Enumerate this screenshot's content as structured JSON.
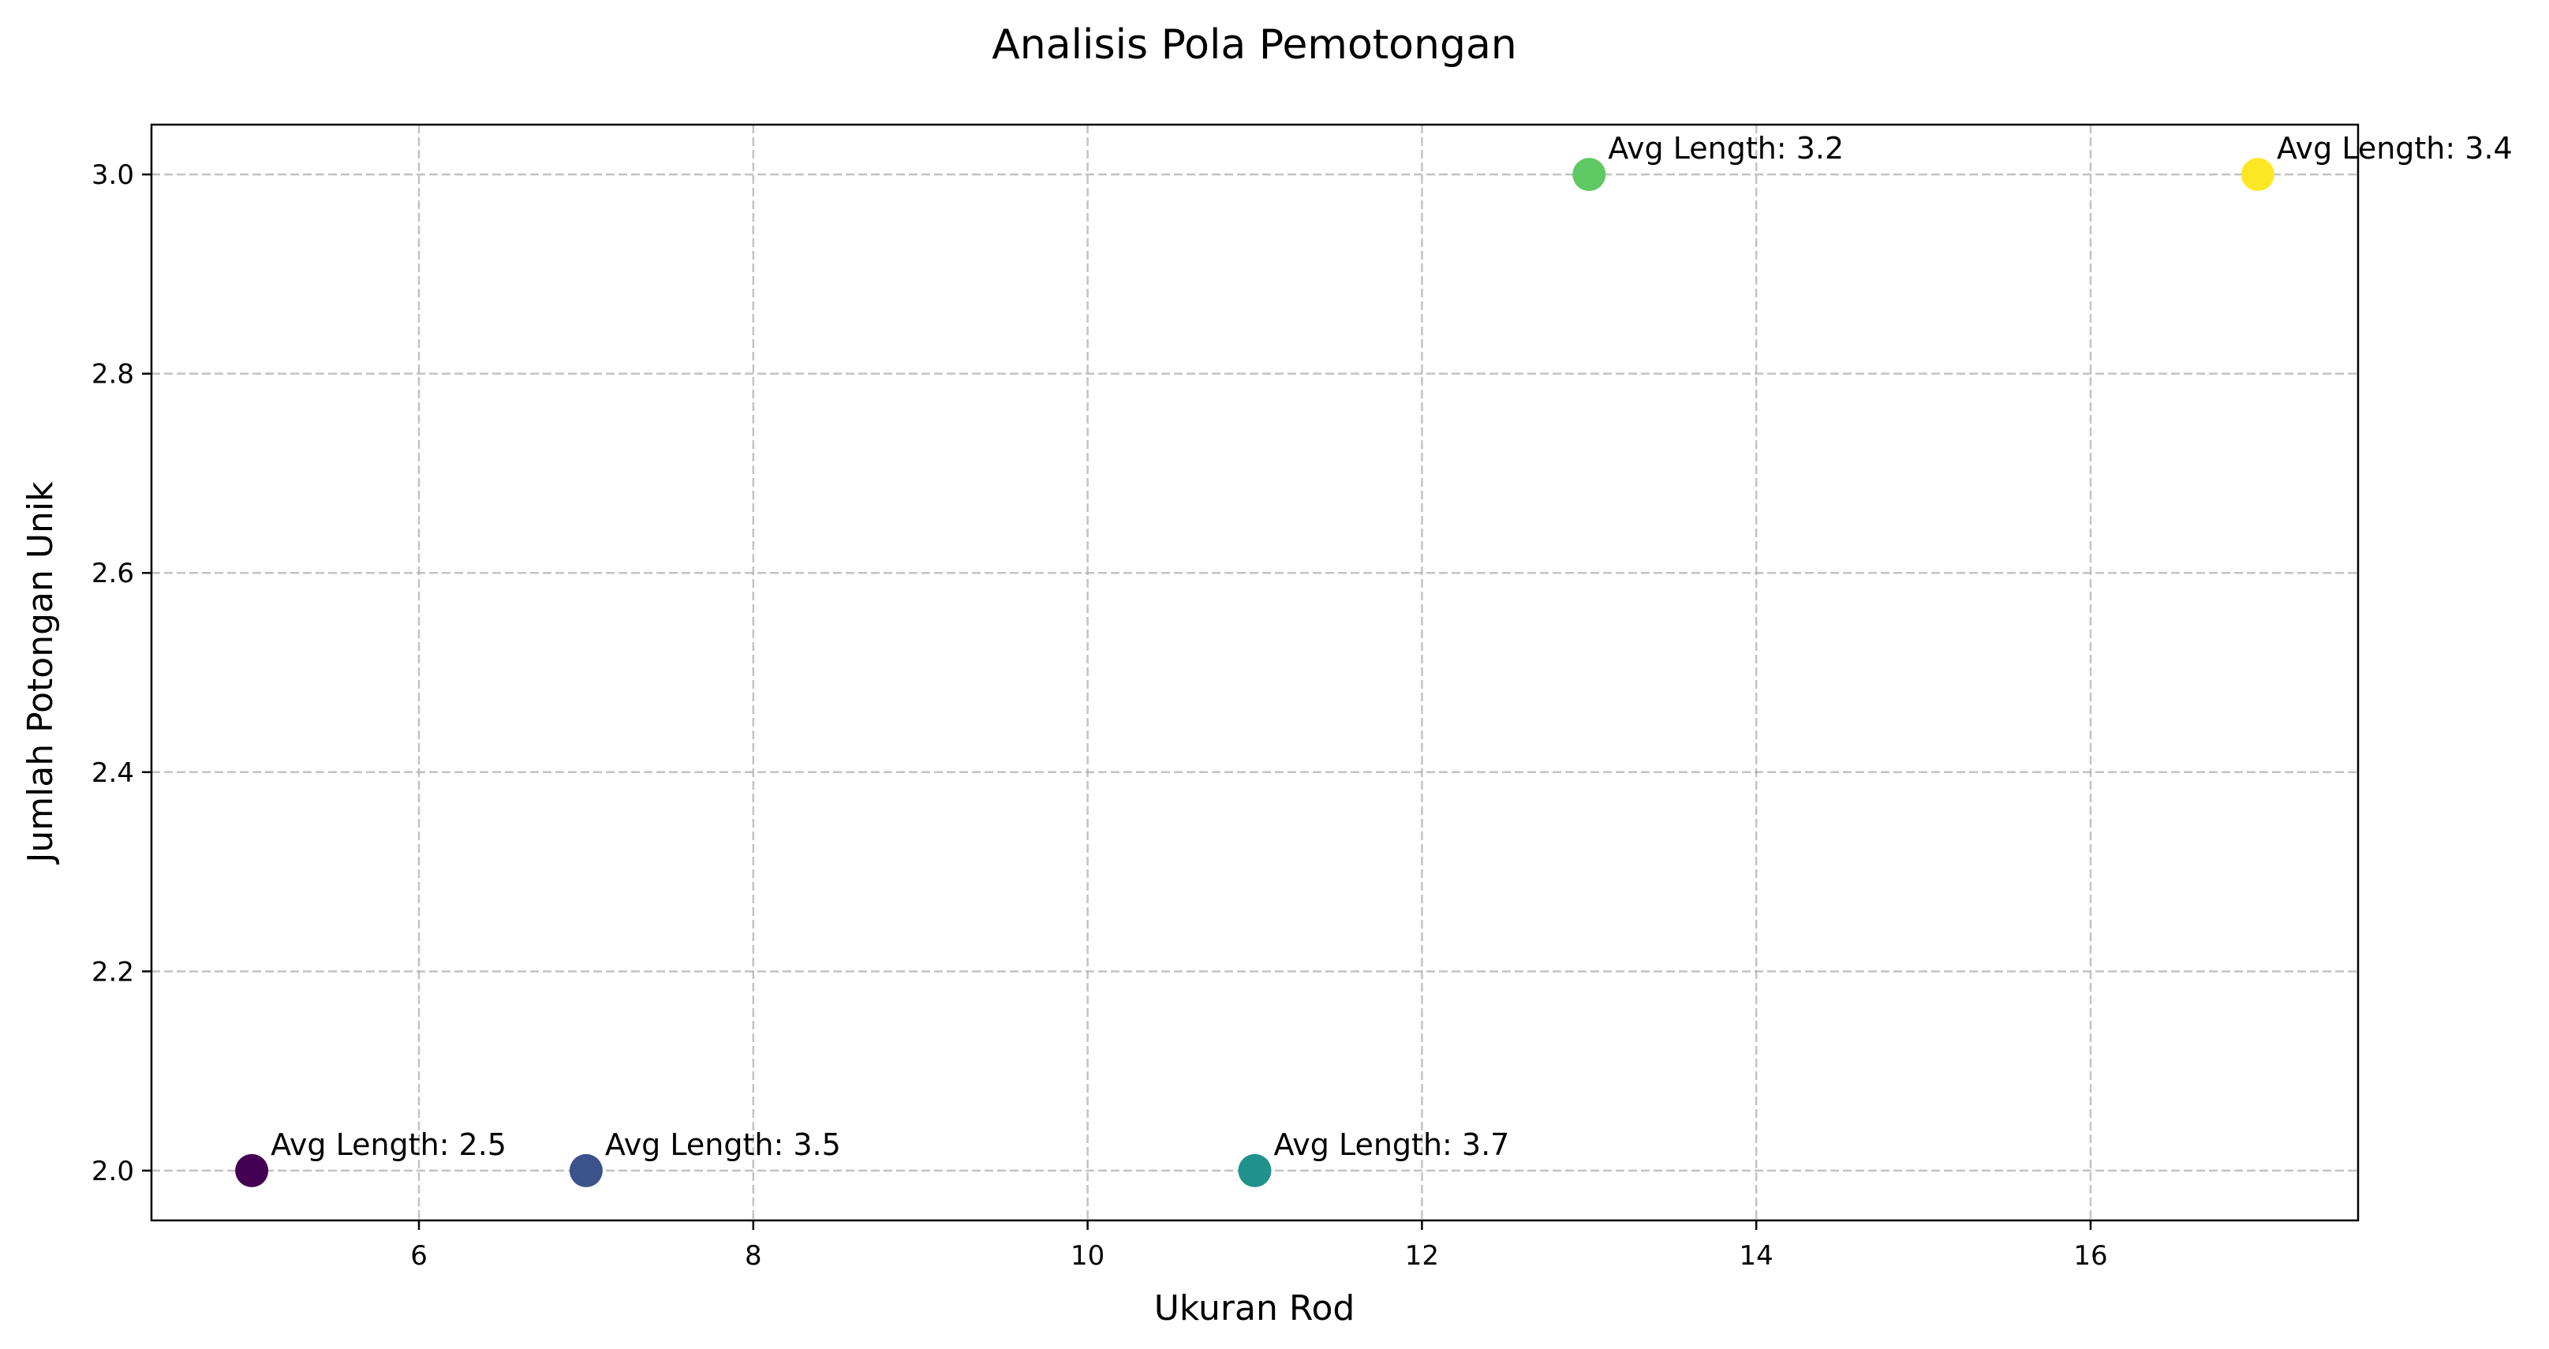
{
  "chart_data": {
    "type": "scatter",
    "title": "Analisis Pola Pemotongan",
    "xlabel": "Ukuran Rod",
    "ylabel": "Jumlah Potongan Unik",
    "xlim": [
      4.4,
      17.6
    ],
    "ylim": [
      1.95,
      3.05
    ],
    "xticks": [
      6,
      8,
      10,
      12,
      14,
      16
    ],
    "xtick_labels": [
      "6",
      "8",
      "10",
      "12",
      "14",
      "16"
    ],
    "yticks": [
      2.0,
      2.2,
      2.4,
      2.6,
      2.8,
      3.0
    ],
    "ytick_labels": [
      "2.0",
      "2.2",
      "2.4",
      "2.6",
      "2.8",
      "3.0"
    ],
    "grid": true,
    "legend": "none",
    "points": [
      {
        "x": 5,
        "y": 2,
        "annotation": "Avg Length: 2.5",
        "color": "#440154"
      },
      {
        "x": 7,
        "y": 2,
        "annotation": "Avg Length: 3.5",
        "color": "#3b528b"
      },
      {
        "x": 11,
        "y": 2,
        "annotation": "Avg Length: 3.7",
        "color": "#21918c"
      },
      {
        "x": 13,
        "y": 3,
        "annotation": "Avg Length: 3.2",
        "color": "#5ec962"
      },
      {
        "x": 17,
        "y": 3,
        "annotation": "Avg Length: 3.4",
        "color": "#fde725"
      }
    ]
  }
}
